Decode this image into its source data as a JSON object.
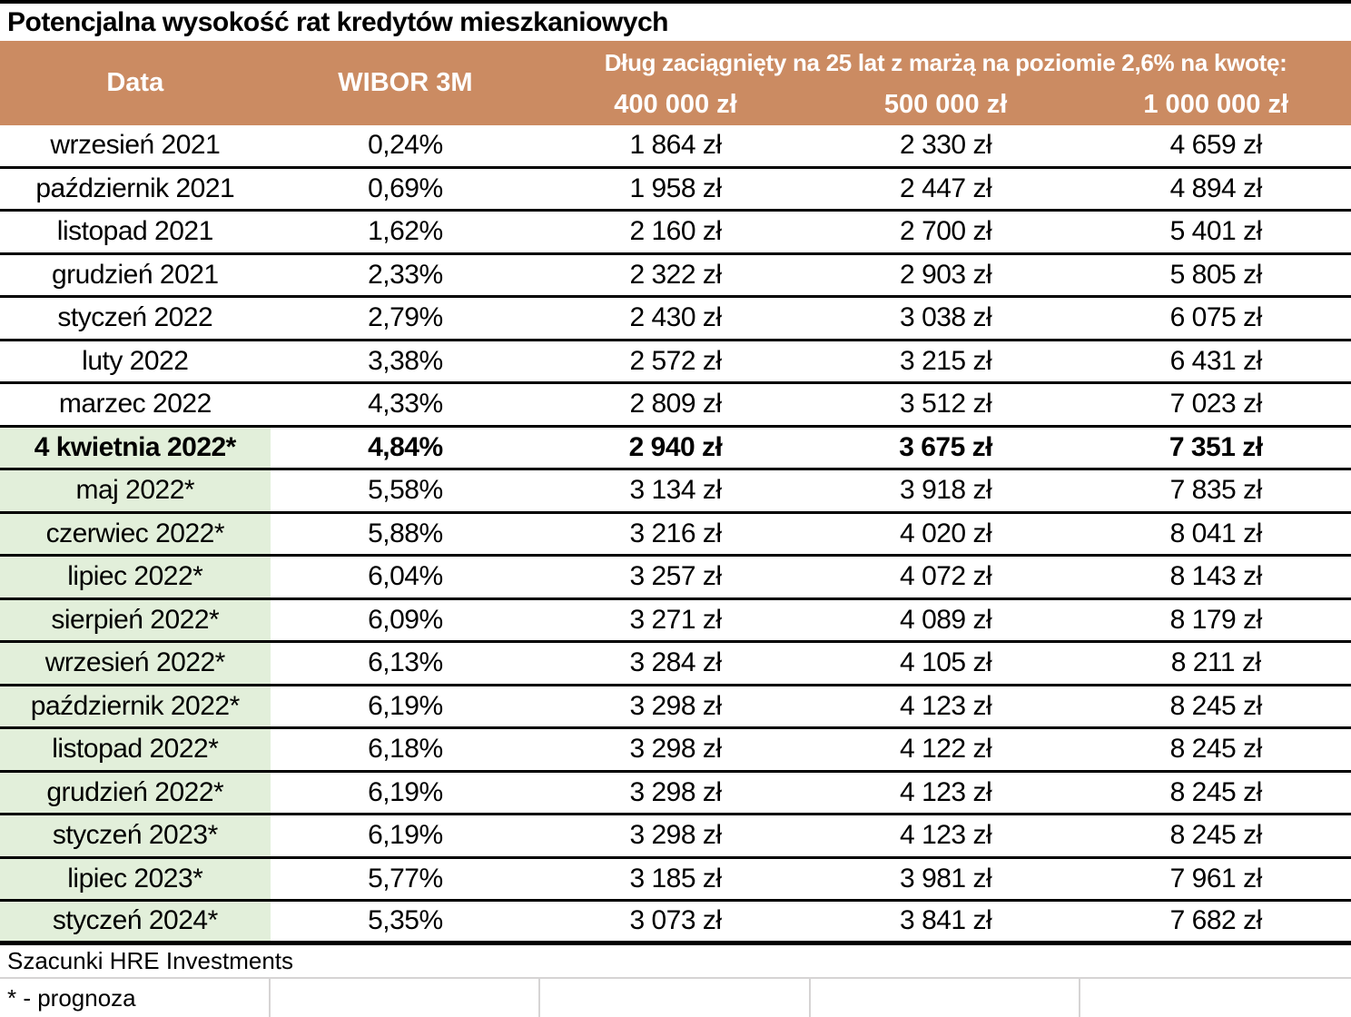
{
  "title": "Potencjalna wysokość rat kredytów mieszkaniowych",
  "header": {
    "data_label": "Data",
    "wibor_label": "WIBOR 3M",
    "group_label": "Dług zaciągnięty na 25 lat z marżą na poziomie 2,6% na kwotę:",
    "amounts": [
      "400 000 zł",
      "500 000 zł",
      "1 000 000 zł"
    ]
  },
  "rows": [
    {
      "date": "wrzesień 2021",
      "wibor": "0,24%",
      "amt400": "1 864 zł",
      "amt500": "2 330 zł",
      "amt1000": "4 659 zł",
      "forecast": false,
      "emphasis": false
    },
    {
      "date": "październik 2021",
      "wibor": "0,69%",
      "amt400": "1 958 zł",
      "amt500": "2 447 zł",
      "amt1000": "4 894 zł",
      "forecast": false,
      "emphasis": false
    },
    {
      "date": "listopad 2021",
      "wibor": "1,62%",
      "amt400": "2 160 zł",
      "amt500": "2 700 zł",
      "amt1000": "5 401 zł",
      "forecast": false,
      "emphasis": false
    },
    {
      "date": "grudzień 2021",
      "wibor": "2,33%",
      "amt400": "2 322 zł",
      "amt500": "2 903 zł",
      "amt1000": "5 805 zł",
      "forecast": false,
      "emphasis": false
    },
    {
      "date": "styczeń 2022",
      "wibor": "2,79%",
      "amt400": "2 430 zł",
      "amt500": "3 038 zł",
      "amt1000": "6 075 zł",
      "forecast": false,
      "emphasis": false
    },
    {
      "date": "luty 2022",
      "wibor": "3,38%",
      "amt400": "2 572 zł",
      "amt500": "3 215 zł",
      "amt1000": "6 431 zł",
      "forecast": false,
      "emphasis": false
    },
    {
      "date": "marzec 2022",
      "wibor": "4,33%",
      "amt400": "2 809 zł",
      "amt500": "3 512 zł",
      "amt1000": "7 023 zł",
      "forecast": false,
      "emphasis": false
    },
    {
      "date": "4 kwietnia 2022*",
      "wibor": "4,84%",
      "amt400": "2 940 zł",
      "amt500": "3 675 zł",
      "amt1000": "7 351 zł",
      "forecast": true,
      "emphasis": true
    },
    {
      "date": "maj 2022*",
      "wibor": "5,58%",
      "amt400": "3 134 zł",
      "amt500": "3 918 zł",
      "amt1000": "7 835 zł",
      "forecast": true,
      "emphasis": false
    },
    {
      "date": "czerwiec 2022*",
      "wibor": "5,88%",
      "amt400": "3 216 zł",
      "amt500": "4 020 zł",
      "amt1000": "8 041 zł",
      "forecast": true,
      "emphasis": false
    },
    {
      "date": "lipiec 2022*",
      "wibor": "6,04%",
      "amt400": "3 257 zł",
      "amt500": "4 072 zł",
      "amt1000": "8 143 zł",
      "forecast": true,
      "emphasis": false
    },
    {
      "date": "sierpień 2022*",
      "wibor": "6,09%",
      "amt400": "3 271 zł",
      "amt500": "4 089 zł",
      "amt1000": "8 179 zł",
      "forecast": true,
      "emphasis": false
    },
    {
      "date": "wrzesień 2022*",
      "wibor": "6,13%",
      "amt400": "3 284 zł",
      "amt500": "4 105 zł",
      "amt1000": "8 211 zł",
      "forecast": true,
      "emphasis": false
    },
    {
      "date": "październik 2022*",
      "wibor": "6,19%",
      "amt400": "3 298 zł",
      "amt500": "4 123 zł",
      "amt1000": "8 245 zł",
      "forecast": true,
      "emphasis": false
    },
    {
      "date": "listopad 2022*",
      "wibor": "6,18%",
      "amt400": "3 298 zł",
      "amt500": "4 122 zł",
      "amt1000": "8 245 zł",
      "forecast": true,
      "emphasis": false
    },
    {
      "date": "grudzień 2022*",
      "wibor": "6,19%",
      "amt400": "3 298 zł",
      "amt500": "4 123 zł",
      "amt1000": "8 245 zł",
      "forecast": true,
      "emphasis": false
    },
    {
      "date": "styczeń 2023*",
      "wibor": "6,19%",
      "amt400": "3 298 zł",
      "amt500": "4 123 zł",
      "amt1000": "8 245 zł",
      "forecast": true,
      "emphasis": false
    },
    {
      "date": "lipiec 2023*",
      "wibor": "5,77%",
      "amt400": "3 185 zł",
      "amt500": "3 981 zł",
      "amt1000": "7 961 zł",
      "forecast": true,
      "emphasis": false
    },
    {
      "date": "styczeń 2024*",
      "wibor": "5,35%",
      "amt400": "3 073 zł",
      "amt500": "3 841 zł",
      "amt1000": "7 682 zł",
      "forecast": true,
      "emphasis": false
    }
  ],
  "footer": {
    "source": "Szacunki HRE Investments",
    "note": "* - prognoza"
  },
  "colors": {
    "header_bg": "#CB8B62",
    "header_text": "#FFFFFF",
    "forecast_bg": "#E2EFDA",
    "row_border": "#000000",
    "gridline": "#D6D4D4"
  },
  "chart_data": {
    "type": "table",
    "title": "Potencjalna wysokość rat kredytów mieszkaniowych",
    "group_header": "Dług zaciągnięty na 25 lat z marżą na poziomie 2,6% na kwotę:",
    "columns": [
      "Data",
      "WIBOR 3M",
      "400 000 zł",
      "500 000 zł",
      "1 000 000 zł"
    ],
    "rows": [
      [
        "wrzesień 2021",
        "0,24%",
        "1 864 zł",
        "2 330 zł",
        "4 659 zł"
      ],
      [
        "październik 2021",
        "0,69%",
        "1 958 zł",
        "2 447 zł",
        "4 894 zł"
      ],
      [
        "listopad 2021",
        "1,62%",
        "2 160 zł",
        "2 700 zł",
        "5 401 zł"
      ],
      [
        "grudzień 2021",
        "2,33%",
        "2 322 zł",
        "2 903 zł",
        "5 805 zł"
      ],
      [
        "styczeń 2022",
        "2,79%",
        "2 430 zł",
        "3 038 zł",
        "6 075 zł"
      ],
      [
        "luty 2022",
        "3,38%",
        "2 572 zł",
        "3 215 zł",
        "6 431 zł"
      ],
      [
        "marzec 2022",
        "4,33%",
        "2 809 zł",
        "3 512 zł",
        "7 023 zł"
      ],
      [
        "4 kwietnia 2022*",
        "4,84%",
        "2 940 zł",
        "3 675 zł",
        "7 351 zł"
      ],
      [
        "maj 2022*",
        "5,58%",
        "3 134 zł",
        "3 918 zł",
        "7 835 zł"
      ],
      [
        "czerwiec 2022*",
        "5,88%",
        "3 216 zł",
        "4 020 zł",
        "8 041 zł"
      ],
      [
        "lipiec 2022*",
        "6,04%",
        "3 257 zł",
        "4 072 zł",
        "8 143 zł"
      ],
      [
        "sierpień 2022*",
        "6,09%",
        "3 271 zł",
        "4 089 zł",
        "8 179 zł"
      ],
      [
        "wrzesień 2022*",
        "6,13%",
        "3 284 zł",
        "4 105 zł",
        "8 211 zł"
      ],
      [
        "październik 2022*",
        "6,19%",
        "3 298 zł",
        "4 123 zł",
        "8 245 zł"
      ],
      [
        "listopad 2022*",
        "6,18%",
        "3 298 zł",
        "4 122 zł",
        "8 245 zł"
      ],
      [
        "grudzień 2022*",
        "6,19%",
        "3 298 zł",
        "4 123 zł",
        "8 245 zł"
      ],
      [
        "styczeń 2023*",
        "6,19%",
        "3 298 zł",
        "4 123 zł",
        "8 245 zł"
      ],
      [
        "lipiec 2023*",
        "5,77%",
        "3 185 zł",
        "3 981 zł",
        "7 961 zł"
      ],
      [
        "styczeń 2024*",
        "5,35%",
        "3 073 zł",
        "3 841 zł",
        "7 682 zł"
      ]
    ],
    "notes": [
      "Szacunki HRE Investments",
      "* - prognoza"
    ],
    "forecast_rows_start": "4 kwietnia 2022*",
    "layout_hints": {
      "forecast_dates_highlighted": true,
      "emphasized_row": "4 kwietnia 2022*"
    }
  }
}
